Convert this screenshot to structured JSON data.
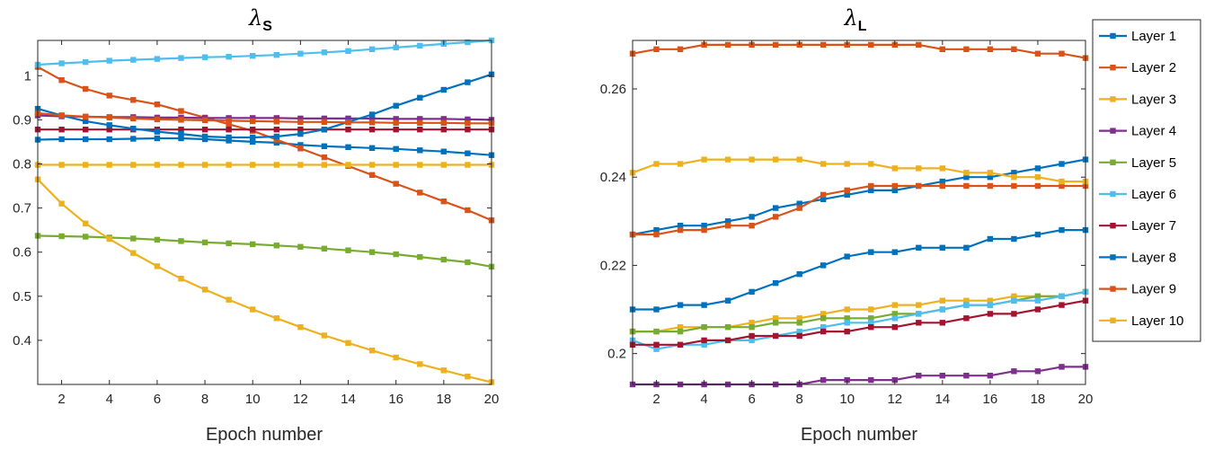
{
  "chart_data": [
    {
      "type": "line",
      "title": "λS",
      "title_symbol": "λ",
      "title_subscript": "S",
      "xlabel": "Epoch number",
      "ylabel": "",
      "xlim": [
        1,
        20
      ],
      "ylim": [
        0.3,
        1.08
      ],
      "xticks": [
        2,
        4,
        6,
        8,
        10,
        12,
        14,
        16,
        18,
        20
      ],
      "yticks": [
        0.4,
        0.5,
        0.6,
        0.7,
        0.8,
        0.9,
        1
      ],
      "grid": false,
      "x": [
        1,
        2,
        3,
        4,
        5,
        6,
        7,
        8,
        9,
        10,
        11,
        12,
        13,
        14,
        15,
        16,
        17,
        18,
        19,
        20
      ],
      "series": [
        {
          "name": "Layer 1",
          "color": "#0072BD",
          "values": [
            0.855,
            0.856,
            0.856,
            0.856,
            0.857,
            0.858,
            0.858,
            0.856,
            0.853,
            0.85,
            0.848,
            0.843,
            0.84,
            0.838,
            0.836,
            0.834,
            0.831,
            0.828,
            0.824,
            0.82
          ]
        },
        {
          "name": "Layer 2",
          "color": "#D95319",
          "values": [
            1.02,
            0.99,
            0.97,
            0.955,
            0.945,
            0.935,
            0.92,
            0.905,
            0.89,
            0.875,
            0.855,
            0.835,
            0.815,
            0.795,
            0.775,
            0.755,
            0.735,
            0.715,
            0.695,
            0.672
          ]
        },
        {
          "name": "Layer 3",
          "color": "#EDB120",
          "values": [
            0.798,
            0.798,
            0.798,
            0.798,
            0.798,
            0.798,
            0.798,
            0.798,
            0.798,
            0.798,
            0.798,
            0.798,
            0.798,
            0.798,
            0.798,
            0.798,
            0.798,
            0.798,
            0.798,
            0.798
          ]
        },
        {
          "name": "Layer 4",
          "color": "#7E2F8E",
          "values": [
            0.91,
            0.908,
            0.907,
            0.906,
            0.906,
            0.905,
            0.905,
            0.904,
            0.904,
            0.904,
            0.904,
            0.903,
            0.903,
            0.903,
            0.903,
            0.902,
            0.902,
            0.902,
            0.901,
            0.9
          ]
        },
        {
          "name": "Layer 5",
          "color": "#77AC30",
          "values": [
            0.637,
            0.636,
            0.635,
            0.633,
            0.631,
            0.628,
            0.625,
            0.622,
            0.62,
            0.618,
            0.615,
            0.612,
            0.608,
            0.604,
            0.6,
            0.595,
            0.589,
            0.583,
            0.577,
            0.567
          ]
        },
        {
          "name": "Layer 6",
          "color": "#4DBEEE",
          "values": [
            1.025,
            1.028,
            1.031,
            1.034,
            1.036,
            1.038,
            1.04,
            1.042,
            1.043,
            1.045,
            1.047,
            1.05,
            1.053,
            1.056,
            1.06,
            1.064,
            1.068,
            1.072,
            1.076,
            1.08
          ]
        },
        {
          "name": "Layer 7",
          "color": "#A2142F",
          "values": [
            0.878,
            0.878,
            0.878,
            0.878,
            0.878,
            0.878,
            0.878,
            0.878,
            0.878,
            0.878,
            0.878,
            0.878,
            0.878,
            0.878,
            0.878,
            0.878,
            0.878,
            0.878,
            0.878,
            0.878
          ]
        },
        {
          "name": "Layer 8",
          "color": "#0072BD",
          "values": [
            0.925,
            0.91,
            0.897,
            0.888,
            0.88,
            0.873,
            0.868,
            0.862,
            0.86,
            0.86,
            0.862,
            0.868,
            0.878,
            0.895,
            0.912,
            0.932,
            0.95,
            0.968,
            0.985,
            1.003
          ]
        },
        {
          "name": "Layer 9",
          "color": "#D95319",
          "values": [
            0.915,
            0.91,
            0.907,
            0.905,
            0.903,
            0.901,
            0.9,
            0.899,
            0.898,
            0.897,
            0.896,
            0.895,
            0.895,
            0.894,
            0.894,
            0.893,
            0.893,
            0.893,
            0.892,
            0.892
          ]
        },
        {
          "name": "Layer 10",
          "color": "#EDB120",
          "values": [
            0.765,
            0.71,
            0.665,
            0.63,
            0.598,
            0.568,
            0.54,
            0.515,
            0.492,
            0.47,
            0.45,
            0.43,
            0.411,
            0.394,
            0.377,
            0.361,
            0.346,
            0.332,
            0.318,
            0.305
          ]
        }
      ]
    },
    {
      "type": "line",
      "title": "λL",
      "title_symbol": "λ",
      "title_subscript": "L",
      "xlabel": "Epoch number",
      "ylabel": "",
      "xlim": [
        1,
        20
      ],
      "ylim": [
        0.193,
        0.271
      ],
      "xticks": [
        2,
        4,
        6,
        8,
        10,
        12,
        14,
        16,
        18,
        20
      ],
      "yticks": [
        0.2,
        0.22,
        0.24,
        0.26
      ],
      "ytick_labels": [
        "0.2",
        "0.22",
        "0.24",
        "0.26"
      ],
      "grid": false,
      "legend": "outside-right",
      "x": [
        1,
        2,
        3,
        4,
        5,
        6,
        7,
        8,
        9,
        10,
        11,
        12,
        13,
        14,
        15,
        16,
        17,
        18,
        19,
        20
      ],
      "series": [
        {
          "name": "Layer 1",
          "color": "#0072BD",
          "values": [
            0.227,
            0.228,
            0.229,
            0.229,
            0.23,
            0.231,
            0.233,
            0.234,
            0.235,
            0.236,
            0.237,
            0.237,
            0.238,
            0.239,
            0.24,
            0.24,
            0.241,
            0.242,
            0.243,
            0.244
          ]
        },
        {
          "name": "Layer 2",
          "color": "#D95319",
          "values": [
            0.268,
            0.269,
            0.269,
            0.27,
            0.27,
            0.27,
            0.27,
            0.27,
            0.27,
            0.27,
            0.27,
            0.27,
            0.27,
            0.269,
            0.269,
            0.269,
            0.269,
            0.268,
            0.268,
            0.267
          ]
        },
        {
          "name": "Layer 3",
          "color": "#EDB120",
          "values": [
            0.205,
            0.205,
            0.206,
            0.206,
            0.206,
            0.207,
            0.208,
            0.208,
            0.209,
            0.21,
            0.21,
            0.211,
            0.211,
            0.212,
            0.212,
            0.212,
            0.213,
            0.213,
            0.213,
            0.214
          ]
        },
        {
          "name": "Layer 4",
          "color": "#7E2F8E",
          "values": [
            0.193,
            0.193,
            0.193,
            0.193,
            0.193,
            0.193,
            0.193,
            0.193,
            0.194,
            0.194,
            0.194,
            0.194,
            0.195,
            0.195,
            0.195,
            0.195,
            0.196,
            0.196,
            0.197,
            0.197
          ]
        },
        {
          "name": "Layer 5",
          "color": "#77AC30",
          "values": [
            0.205,
            0.205,
            0.205,
            0.206,
            0.206,
            0.206,
            0.207,
            0.207,
            0.208,
            0.208,
            0.208,
            0.209,
            0.209,
            0.21,
            0.211,
            0.211,
            0.212,
            0.213,
            0.213,
            0.214
          ]
        },
        {
          "name": "Layer 6",
          "color": "#4DBEEE",
          "values": [
            0.203,
            0.201,
            0.202,
            0.202,
            0.203,
            0.203,
            0.204,
            0.205,
            0.206,
            0.207,
            0.207,
            0.208,
            0.209,
            0.21,
            0.211,
            0.211,
            0.212,
            0.212,
            0.213,
            0.214
          ]
        },
        {
          "name": "Layer 7",
          "color": "#A2142F",
          "values": [
            0.202,
            0.202,
            0.202,
            0.203,
            0.203,
            0.204,
            0.204,
            0.204,
            0.205,
            0.205,
            0.206,
            0.206,
            0.207,
            0.207,
            0.208,
            0.209,
            0.209,
            0.21,
            0.211,
            0.212
          ]
        },
        {
          "name": "Layer 8",
          "color": "#0072BD",
          "values": [
            0.21,
            0.21,
            0.211,
            0.211,
            0.212,
            0.214,
            0.216,
            0.218,
            0.22,
            0.222,
            0.223,
            0.223,
            0.224,
            0.224,
            0.224,
            0.226,
            0.226,
            0.227,
            0.228,
            0.228
          ]
        },
        {
          "name": "Layer 9",
          "color": "#D95319",
          "values": [
            0.227,
            0.227,
            0.228,
            0.228,
            0.229,
            0.229,
            0.231,
            0.233,
            0.236,
            0.237,
            0.238,
            0.238,
            0.238,
            0.238,
            0.238,
            0.238,
            0.238,
            0.238,
            0.238,
            0.238
          ]
        },
        {
          "name": "Layer 10",
          "color": "#EDB120",
          "values": [
            0.241,
            0.243,
            0.243,
            0.244,
            0.244,
            0.244,
            0.244,
            0.244,
            0.243,
            0.243,
            0.243,
            0.242,
            0.242,
            0.242,
            0.241,
            0.241,
            0.24,
            0.24,
            0.239,
            0.239
          ]
        }
      ]
    }
  ]
}
